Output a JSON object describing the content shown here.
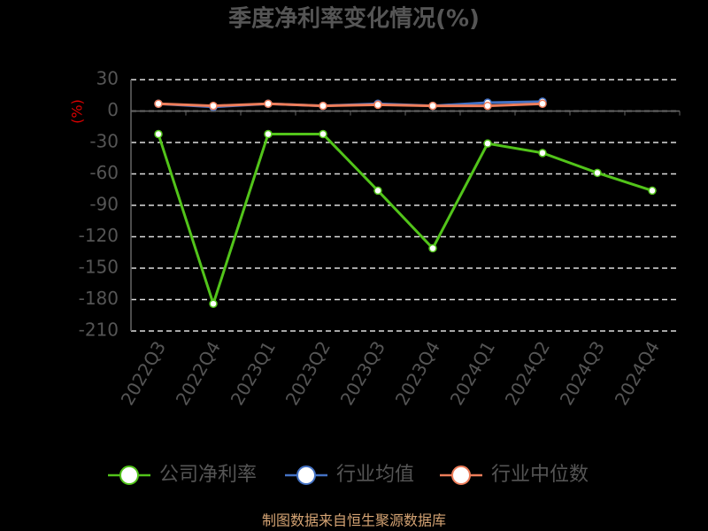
{
  "chart_data": {
    "type": "line",
    "title": "季度净利率变化情况(%)",
    "y_label": "(%)",
    "categories": [
      "2022Q3",
      "2022Q4",
      "2023Q1",
      "2023Q2",
      "2023Q3",
      "2023Q4",
      "2024Q1",
      "2024Q2",
      "2024Q3",
      "2024Q4"
    ],
    "series": [
      {
        "name": "公司净利率",
        "color": "#52c41a",
        "values": [
          -22,
          -184,
          -22,
          -22,
          -76,
          -131,
          -31,
          -40,
          -59,
          -76
        ]
      },
      {
        "name": "行业均值",
        "color": "#4472c4",
        "values": [
          7,
          4,
          7,
          5,
          7,
          5,
          8,
          9,
          null,
          null
        ]
      },
      {
        "name": "行业中位数",
        "color": "#ed7d5a",
        "values": [
          7,
          5,
          7,
          5,
          6,
          5,
          5,
          7,
          null,
          null
        ]
      }
    ],
    "ylim": [
      30,
      -210
    ],
    "yticks": [
      30,
      0,
      -30,
      -60,
      -90,
      -120,
      -150,
      -180,
      -210
    ],
    "grid": true,
    "source": "制图数据来自恒生聚源数据库"
  }
}
